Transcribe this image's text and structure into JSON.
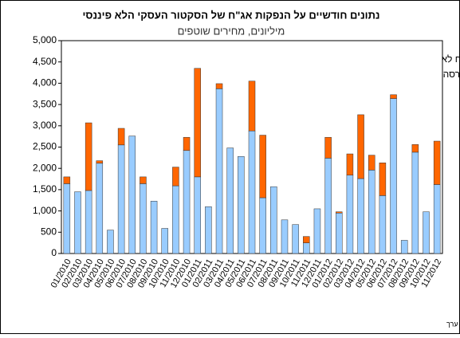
{
  "chart_data": {
    "type": "stacked_bar",
    "title": "נתונים חודשיים על הנפקות אג\"ח של הסקטור העסקי הלא פיננסי",
    "subtitle": "מיליונים, מחירים שוטפים",
    "source": "מקור: נתוני אג\"ח סחיר - הבורסה לניירות ערך",
    "categories": [
      "01/2010",
      "02/2010",
      "03/2010",
      "04/2010",
      "05/2010",
      "06/2010",
      "07/2010",
      "08/2010",
      "09/2010",
      "10/2010",
      "11/2010",
      "12/2010",
      "01/2011",
      "02/2011",
      "03/2011",
      "04/2011",
      "05/2011",
      "06/2011",
      "07/2011",
      "08/2011",
      "09/2011",
      "10/2011",
      "11/2011",
      "12/2011",
      "01/2012",
      "02/2012",
      "03/2012",
      "04/2012",
      "05/2012",
      "06/2012",
      "07/2012",
      "08/2012",
      "09/2012",
      "10/2012",
      "11/2012"
    ],
    "series": [
      {
        "name": "הנפקות אג\"ח סחיר בבורסה בת\"א",
        "color": "#99ccff",
        "values": [
          1640,
          1450,
          1480,
          2120,
          550,
          2550,
          2760,
          1640,
          1230,
          590,
          1590,
          2420,
          1800,
          1100,
          3870,
          2480,
          2280,
          2880,
          1310,
          1570,
          790,
          680,
          250,
          1050,
          2240,
          950,
          1840,
          1760,
          1960,
          1360,
          3640,
          310,
          2380,
          980,
          1620
        ]
      },
      {
        "name": "הנפקות אג\"ח לא סחיר",
        "color": "#ff6600",
        "values": [
          160,
          0,
          1590,
          60,
          0,
          390,
          0,
          160,
          0,
          0,
          440,
          310,
          2550,
          0,
          120,
          0,
          0,
          1170,
          1470,
          0,
          0,
          0,
          150,
          0,
          490,
          30,
          500,
          1500,
          350,
          770,
          90,
          0,
          180,
          0,
          1020
        ]
      }
    ],
    "ylim": [
      0,
      5000
    ],
    "yticks": [
      0,
      500,
      {
        "value": 1000,
        "label": "1,000"
      },
      {
        "value": 1500,
        "label": "1,500"
      },
      {
        "value": 2000,
        "label": "2,000"
      },
      {
        "value": 2500,
        "label": "2,500"
      },
      {
        "value": 3000,
        "label": "3,000"
      },
      {
        "value": 3500,
        "label": "3,500"
      },
      {
        "value": 4000,
        "label": "4,000"
      },
      {
        "value": 4500,
        "label": "4,500"
      },
      {
        "value": 5000,
        "label": "5,000"
      }
    ],
    "grid": false
  }
}
